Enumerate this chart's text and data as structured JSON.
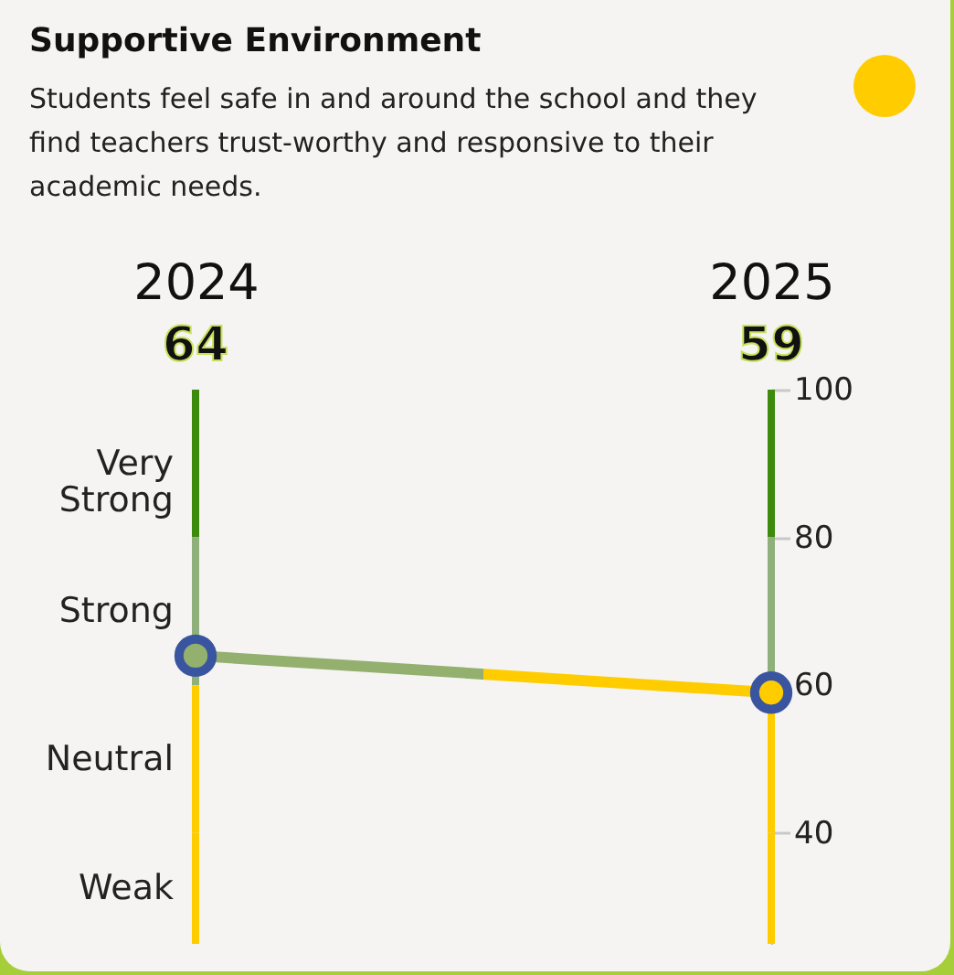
{
  "chart_data": {
    "type": "line",
    "title": "Supportive Environment",
    "subtitle": "Students feel safe in and around the school and they find teachers trust-worthy and responsive to their academic needs.",
    "categories": [
      "2024",
      "2025"
    ],
    "series": [
      {
        "values": [
          64,
          59
        ],
        "colors": [
          "#93b06e",
          "#ffcc00"
        ]
      }
    ],
    "annotations": [
      "64",
      "59"
    ],
    "marker": "circle",
    "grid": false,
    "ylim": [
      25,
      100
    ],
    "yticks": [
      40,
      60,
      80,
      100
    ],
    "bands": [
      {
        "axis": "y",
        "from": 80,
        "to": 100,
        "label": "Very Strong",
        "color": "#3d8b0d"
      },
      {
        "axis": "y",
        "from": 60,
        "to": 80,
        "label": "Strong",
        "color": "#8fb07a"
      },
      {
        "axis": "y",
        "from": 40,
        "to": 60,
        "label": "Neutral",
        "color": "#ffcc00"
      },
      {
        "axis": "y",
        "from": 25,
        "to": 40,
        "label": "Weak",
        "color": "#ffcc00"
      }
    ]
  }
}
